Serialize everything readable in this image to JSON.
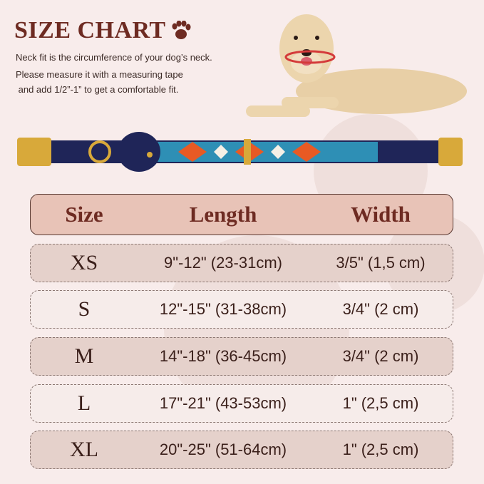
{
  "title": "SIZE CHART",
  "description": [
    "Neck fit is the circumference of your dog’s neck.",
    "Please measure it with a measuring tape",
    " and add 1/2”-1” to get a comfortable fit."
  ],
  "colors": {
    "title": "#6e2b22",
    "header_bg": "#e8c3b7",
    "row_dark": "#e5d1cb",
    "row_light": "#f6ecea",
    "background": "#f8eceb"
  },
  "table": {
    "headers": [
      "Size",
      "Length",
      "Width"
    ],
    "rows": [
      {
        "size": "XS",
        "length": "9\"-12\" (23-31cm)",
        "width": "3/5\" (1,5 cm)"
      },
      {
        "size": "S",
        "length": "12\"-15\" (31-38cm)",
        "width": "3/4\" (2 cm)"
      },
      {
        "size": "M",
        "length": "14\"-18\" (36-45cm)",
        "width": "3/4\" (2 cm)"
      },
      {
        "size": "L",
        "length": "17\"-21\" (43-53cm)",
        "width": "1\"  (2,5 cm)"
      },
      {
        "size": "XL",
        "length": "20\"-25\" (51-64cm)",
        "width": "1\"  (2,5 cm)"
      }
    ]
  }
}
